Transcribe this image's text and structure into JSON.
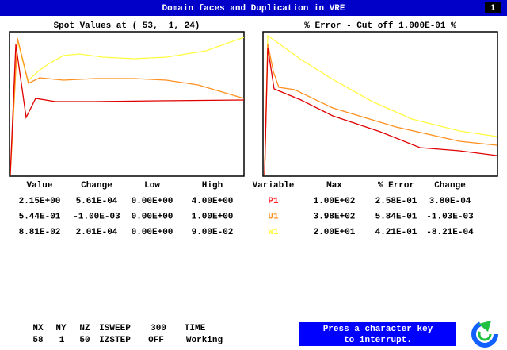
{
  "header": {
    "title": "Domain faces and Duplication in VRE",
    "badge": "1"
  },
  "left_panel": {
    "title": "Spot Values at ( 53,  1, 24)"
  },
  "right_panel": {
    "title": "% Error - Cut off 1.000E-01 %"
  },
  "table": {
    "columns": [
      "Value",
      "Change",
      "Low",
      "High",
      "Variable",
      "Max",
      "% Error",
      "Change"
    ],
    "rows": [
      [
        "2.15E+00",
        "5.61E-04",
        "0.00E+00",
        "4.00E+00",
        "P1",
        "1.00E+02",
        "2.58E-01",
        "3.80E-04"
      ],
      [
        "5.44E-01",
        "-1.00E-03",
        "0.00E+00",
        "1.00E+00",
        "U1",
        "3.98E+02",
        "5.84E-01",
        "-1.03E-03"
      ],
      [
        "8.81E-02",
        "2.01E-04",
        "0.00E+00",
        "9.00E-02",
        "W1",
        "2.00E+01",
        "4.21E-01",
        "-8.21E-04"
      ]
    ]
  },
  "status": {
    "headers": [
      "NX",
      "NY",
      "NZ",
      "ISWEEP",
      "300",
      "TIME"
    ],
    "values": [
      "58",
      "1",
      "50",
      "IZSTEP",
      "OFF",
      "Working"
    ]
  },
  "prompt": {
    "lines": [
      "Press a character key",
      "to interrupt."
    ]
  }
}
